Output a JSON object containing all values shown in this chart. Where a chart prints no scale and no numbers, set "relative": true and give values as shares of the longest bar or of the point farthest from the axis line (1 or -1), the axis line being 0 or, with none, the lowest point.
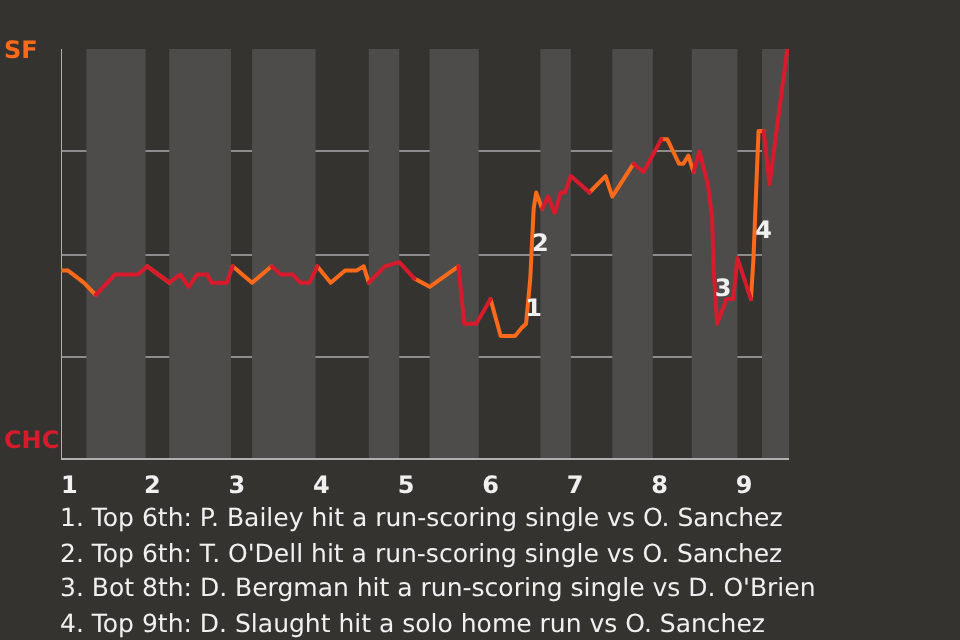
{
  "chart_data": {
    "type": "line",
    "relative": true,
    "grid": "y",
    "xlim": [
      0.92,
      9.53
    ],
    "xticks": [
      1,
      2,
      3,
      4,
      5,
      6,
      7,
      8,
      9
    ],
    "x": [
      0.92,
      1.0,
      1.19,
      1.33,
      1.56,
      1.83,
      1.94,
      2.2,
      2.33,
      2.43,
      2.53,
      2.65,
      2.7,
      2.88,
      2.95,
      3.18,
      3.41,
      3.52,
      3.66,
      3.75,
      3.86,
      3.95,
      4.11,
      4.28,
      4.42,
      4.5,
      4.56,
      4.75,
      4.92,
      5.1,
      5.28,
      5.62,
      5.69,
      5.83,
      6.0,
      6.12,
      6.29,
      6.37,
      6.42,
      6.47,
      6.51,
      6.54,
      6.61,
      6.68,
      6.76,
      6.83,
      6.88,
      6.95,
      7.17,
      7.36,
      7.44,
      7.69,
      7.81,
      8.02,
      8.09,
      8.23,
      8.28,
      8.34,
      8.4,
      8.47,
      8.57,
      8.62,
      8.64,
      8.68,
      8.79,
      8.87,
      8.92,
      9.08,
      9.11,
      9.15,
      9.17,
      9.23,
      9.3,
      9.51
    ],
    "series": [
      {
        "color": "#ff6a1a",
        "values": [
          0.46,
          0.46,
          0.43,
          0.4,
          null,
          null,
          0.47,
          0.43,
          null,
          null,
          null,
          null,
          null,
          null,
          0.47,
          0.43,
          0.47,
          null,
          null,
          null,
          null,
          0.47,
          0.43,
          0.46,
          0.46,
          0.47,
          0.43,
          null,
          null,
          0.44,
          0.42,
          0.47,
          null,
          null,
          0.39,
          0.3,
          0.3,
          0.32,
          0.33,
          0.44,
          0.61,
          0.65,
          0.61,
          null,
          null,
          null,
          null,
          null,
          0.65,
          0.69,
          0.64,
          0.72,
          null,
          0.78,
          0.78,
          0.72,
          0.72,
          0.74,
          0.7,
          null,
          null,
          null,
          null,
          null,
          null,
          null,
          null,
          0.39,
          0.49,
          0.7,
          0.8,
          0.8,
          null,
          null
        ]
      },
      {
        "color": "#d81b2c",
        "values": [
          null,
          null,
          null,
          0.4,
          0.45,
          0.45,
          0.47,
          0.43,
          0.45,
          0.42,
          0.45,
          0.45,
          0.43,
          0.43,
          0.47,
          null,
          0.47,
          0.45,
          0.45,
          0.43,
          0.43,
          0.47,
          null,
          null,
          null,
          null,
          0.43,
          0.47,
          0.48,
          0.44,
          null,
          0.47,
          0.33,
          0.33,
          0.39,
          null,
          null,
          null,
          null,
          null,
          null,
          null,
          0.61,
          0.64,
          0.6,
          0.65,
          0.65,
          0.69,
          0.65,
          null,
          null,
          0.72,
          0.7,
          0.78,
          null,
          null,
          null,
          null,
          0.7,
          0.75,
          0.67,
          0.59,
          0.46,
          0.33,
          0.39,
          0.39,
          0.49,
          0.39,
          null,
          null,
          null,
          0.8,
          0.67,
          1.0
        ]
      }
    ],
    "bands": [
      {
        "axis": "x",
        "from": 1.22,
        "to": 1.92,
        "color": "#4d4c4a"
      },
      {
        "axis": "x",
        "from": 2.2,
        "to": 2.93,
        "color": "#4d4c4a"
      },
      {
        "axis": "x",
        "from": 3.18,
        "to": 3.93,
        "color": "#4d4c4a"
      },
      {
        "axis": "x",
        "from": 4.56,
        "to": 4.92,
        "color": "#4d4c4a"
      },
      {
        "axis": "x",
        "from": 5.28,
        "to": 5.86,
        "color": "#4d4c4a"
      },
      {
        "axis": "x",
        "from": 6.59,
        "to": 6.95,
        "color": "#4d4c4a"
      },
      {
        "axis": "x",
        "from": 7.44,
        "to": 7.92,
        "color": "#4d4c4a"
      },
      {
        "axis": "x",
        "from": 8.38,
        "to": 8.92,
        "color": "#4d4c4a"
      },
      {
        "axis": "x",
        "from": 9.21,
        "to": 9.53,
        "color": "#4d4c4a"
      }
    ],
    "annotations": [
      "SF",
      "CHC",
      {
        "text": "1",
        "x": 6.51,
        "y": 0.37
      },
      {
        "text": "2",
        "x": 6.59,
        "y": 0.53
      },
      {
        "text": "3",
        "x": 8.75,
        "y": 0.42
      },
      {
        "text": "4",
        "x": 9.23,
        "y": 0.56
      },
      "1. Top 6th: P. Bailey hit a run-scoring single vs O. Sanchez",
      "2. Top 6th: T. O'Dell hit a run-scoring single vs O. Sanchez",
      "3. Bot 8th: D. Bergman hit a run-scoring single vs D. O'Brien",
      "4. Top 9th: D. Slaught hit a solo home run vs O. Sanchez"
    ]
  }
}
